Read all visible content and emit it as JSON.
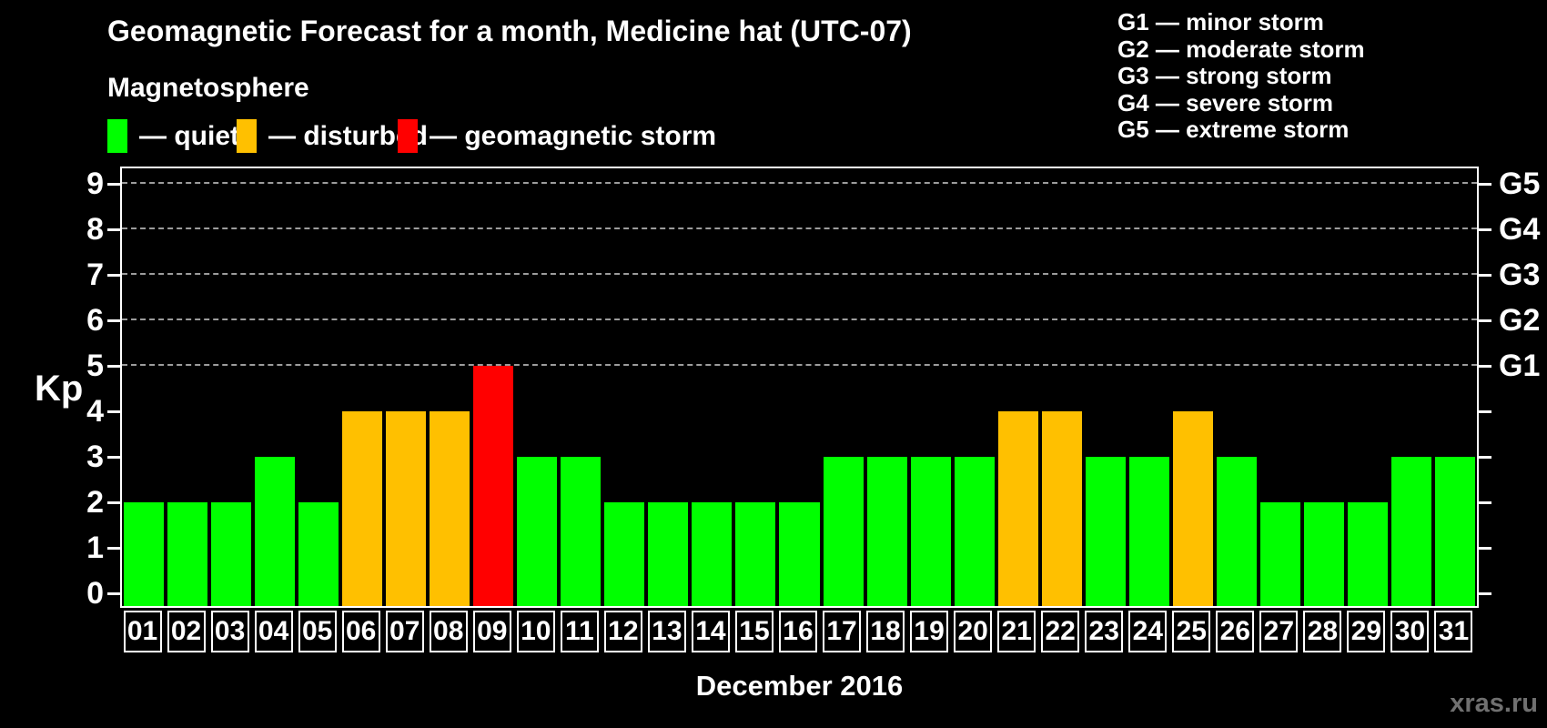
{
  "header": {
    "title": "Geomagnetic Forecast for a month, Medicine hat (UTC-07)",
    "subtitle": "Magnetosphere",
    "watermark": "xras.ru"
  },
  "legend": {
    "items": [
      {
        "key": "quiet",
        "label": "— quiet",
        "color": "#00ff00"
      },
      {
        "key": "disturbed",
        "label": "— disturbed",
        "color": "#ffc000"
      },
      {
        "key": "storm",
        "label": "— geomagnetic storm",
        "color": "#ff0000"
      }
    ]
  },
  "g_legend": {
    "lines": [
      "G1 — minor storm",
      "G2 — moderate storm",
      "G3 — strong storm",
      "G4 — severe storm",
      "G5 — extreme storm"
    ]
  },
  "chart_data": {
    "type": "bar",
    "title": "Geomagnetic Forecast for a month, Medicine hat (UTC-07)",
    "xlabel": "December 2016",
    "ylabel": "Kp",
    "ylim": [
      0,
      9.7
    ],
    "grid": "horizontal dashed lines at Kp 5-9 (G1-G5 levels)",
    "legend_position": "top-left",
    "categories": [
      "01",
      "02",
      "03",
      "04",
      "05",
      "06",
      "07",
      "08",
      "09",
      "10",
      "11",
      "12",
      "13",
      "14",
      "15",
      "16",
      "17",
      "18",
      "19",
      "20",
      "21",
      "22",
      "23",
      "24",
      "25",
      "26",
      "27",
      "28",
      "29",
      "30",
      "31"
    ],
    "values": [
      2,
      2,
      2,
      3,
      2,
      4,
      4,
      4,
      5,
      3,
      3,
      2,
      2,
      2,
      2,
      2,
      3,
      3,
      3,
      3,
      4,
      4,
      3,
      3,
      4,
      3,
      2,
      2,
      2,
      3,
      3
    ],
    "statuses": [
      "quiet",
      "quiet",
      "quiet",
      "quiet",
      "quiet",
      "disturbed",
      "disturbed",
      "disturbed",
      "storm",
      "quiet",
      "quiet",
      "quiet",
      "quiet",
      "quiet",
      "quiet",
      "quiet",
      "quiet",
      "quiet",
      "quiet",
      "quiet",
      "disturbed",
      "disturbed",
      "quiet",
      "quiet",
      "disturbed",
      "quiet",
      "quiet",
      "quiet",
      "quiet",
      "quiet",
      "quiet"
    ],
    "y_ticks": [
      "0",
      "1",
      "2",
      "3",
      "4",
      "5",
      "6",
      "7",
      "8",
      "9"
    ],
    "gridlines_kp": [
      5,
      6,
      7,
      8,
      9
    ],
    "right_axis": {
      "labels": [
        {
          "kp": 5,
          "label": "G1"
        },
        {
          "kp": 6,
          "label": "G2"
        },
        {
          "kp": 7,
          "label": "G3"
        },
        {
          "kp": 8,
          "label": "G4"
        },
        {
          "kp": 9,
          "label": "G5"
        }
      ]
    }
  }
}
